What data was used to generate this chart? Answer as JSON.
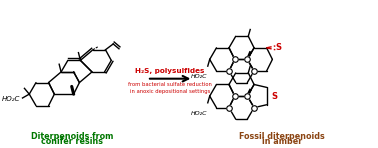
{
  "background_color": "#ffffff",
  "arrow_color": "#000000",
  "h2s_text": "H₂S, polysulfides",
  "h2s_color": "#cc0000",
  "subtitle_text": "from bacterial sulfate reduction\nin anoxic depositional settings",
  "subtitle_color": "#cc0000",
  "left_label_line1": "Diterpenoids from",
  "left_label_line2": "conifer resins",
  "left_label_color": "#007700",
  "right_label_line1": "Fossil diterpenoids",
  "right_label_line2": "in amber",
  "right_label_color": "#8B4513",
  "sulfur_color": "#cc0000",
  "structure_color": "#000000"
}
